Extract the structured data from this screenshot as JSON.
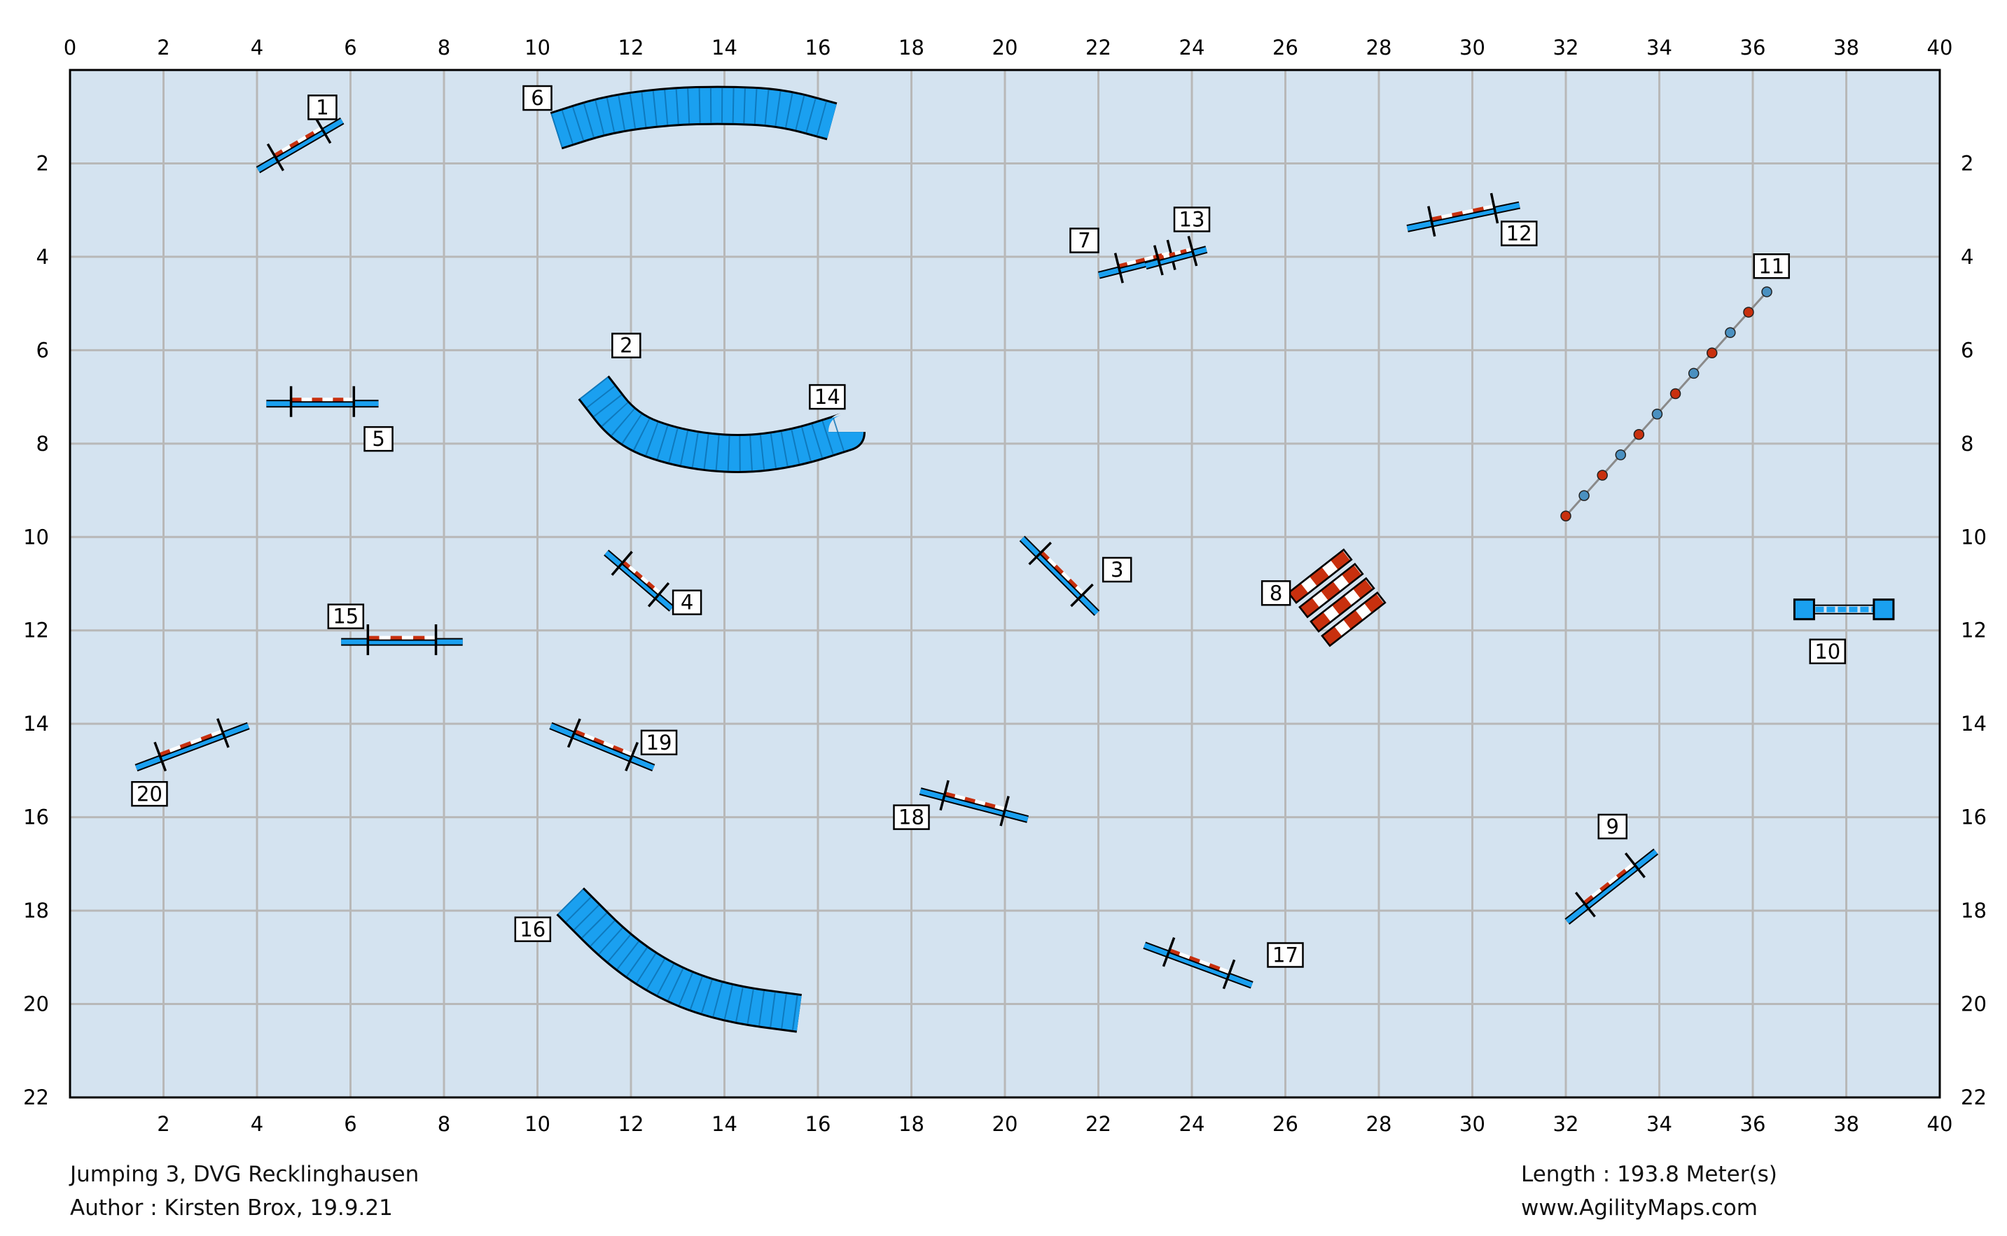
{
  "map": {
    "x_ticks_top": [
      "0",
      "2",
      "4",
      "6",
      "8",
      "10",
      "12",
      "14",
      "16",
      "18",
      "20",
      "22",
      "24",
      "26",
      "28",
      "30",
      "32",
      "34",
      "36",
      "38",
      "40"
    ],
    "x_ticks_bottom": [
      "2",
      "4",
      "6",
      "8",
      "10",
      "12",
      "14",
      "16",
      "18",
      "20",
      "22",
      "24",
      "26",
      "28",
      "30",
      "32",
      "34",
      "36",
      "38",
      "40"
    ],
    "y_ticks": [
      "2",
      "4",
      "6",
      "8",
      "10",
      "12",
      "14",
      "16",
      "18",
      "20",
      "22"
    ],
    "width_m": 40,
    "height_m": 22,
    "colors": {
      "field": "#d4e3f0",
      "grid": "#b8b8b8",
      "blue": "#1aa0f0",
      "red": "#c8300e"
    }
  },
  "obstacles": {
    "jumps": [
      {
        "num": "1",
        "p1": [
          4.0,
          2.1
        ],
        "p2": [
          5.8,
          1.05
        ],
        "label_at": [
          5.4,
          0.8
        ]
      },
      {
        "num": "3",
        "p1": [
          20.4,
          10.0
        ],
        "p2": [
          22.0,
          11.6
        ],
        "label_at": [
          22.4,
          10.7
        ]
      },
      {
        "num": "4",
        "p1": [
          11.5,
          10.3
        ],
        "p2": [
          12.9,
          11.5
        ],
        "label_at": [
          13.2,
          11.4
        ]
      },
      {
        "num": "5",
        "p1": [
          4.2,
          7.1
        ],
        "p2": [
          6.6,
          7.1
        ],
        "label_at": [
          6.6,
          7.9
        ]
      },
      {
        "num": "7",
        "p1": [
          22.0,
          4.35
        ],
        "p2": [
          24.0,
          3.85
        ],
        "label_at": [
          21.7,
          3.65
        ]
      },
      {
        "num": "9",
        "p1": [
          32.0,
          18.2
        ],
        "p2": [
          33.9,
          16.7
        ],
        "label_at": [
          33.0,
          16.2
        ]
      },
      {
        "num": "12",
        "p1": [
          28.6,
          3.35
        ],
        "p2": [
          31.0,
          2.85
        ],
        "label_at": [
          31.0,
          3.5
        ]
      },
      {
        "num": "13",
        "p1": [
          23.0,
          4.15
        ],
        "p2": [
          24.3,
          3.8
        ],
        "label_at": [
          24.0,
          3.2
        ]
      },
      {
        "num": "15",
        "p1": [
          5.8,
          12.2
        ],
        "p2": [
          8.4,
          12.2
        ],
        "label_at": [
          5.9,
          11.7
        ]
      },
      {
        "num": "17",
        "p1": [
          23.0,
          18.7
        ],
        "p2": [
          25.3,
          19.55
        ],
        "label_at": [
          26.0,
          18.95
        ]
      },
      {
        "num": "18",
        "p1": [
          18.2,
          15.4
        ],
        "p2": [
          20.5,
          16.0
        ],
        "label_at": [
          18.0,
          16.0
        ]
      },
      {
        "num": "19",
        "p1": [
          10.3,
          14.0
        ],
        "p2": [
          12.5,
          14.9
        ],
        "label_at": [
          12.6,
          14.4
        ]
      },
      {
        "num": "20",
        "p1": [
          1.4,
          14.9
        ],
        "p2": [
          3.8,
          14.0
        ],
        "label_at": [
          1.7,
          15.5
        ]
      }
    ],
    "tunnels": [
      {
        "num": "6",
        "points": [
          [
            10.4,
            1.3
          ],
          [
            11.5,
            0.95
          ],
          [
            12.8,
            0.78
          ],
          [
            14.0,
            0.75
          ],
          [
            15.2,
            0.8
          ],
          [
            16.3,
            1.1
          ]
        ],
        "label_at": [
          10.0,
          0.6
        ]
      },
      {
        "num": "2",
        "points": [
          [
            11.2,
            6.8
          ],
          [
            11.9,
            7.7
          ],
          [
            13.0,
            8.1
          ],
          [
            14.3,
            8.25
          ],
          [
            15.5,
            8.1
          ],
          [
            16.6,
            7.75
          ]
        ],
        "label_at": [
          11.9,
          5.9
        ]
      },
      {
        "num": "14",
        "points": [],
        "label_at": [
          16.2,
          7.0
        ]
      },
      {
        "num": "16",
        "points": [
          [
            10.7,
            17.8
          ],
          [
            11.8,
            18.9
          ],
          [
            12.9,
            19.6
          ],
          [
            14.1,
            20.0
          ],
          [
            15.6,
            20.2
          ]
        ],
        "label_at": [
          9.9,
          18.4
        ]
      }
    ],
    "weave": {
      "num": "11",
      "start": [
        32.0,
        9.55
      ],
      "end": [
        36.3,
        4.75
      ],
      "poles": 12,
      "label_at": [
        36.4,
        4.2
      ]
    },
    "table": {
      "num": "10",
      "p1": [
        37.1,
        11.55
      ],
      "p2": [
        38.8,
        11.55
      ],
      "label_at": [
        37.6,
        12.45
      ]
    },
    "wall": {
      "num": "8",
      "label_at": [
        25.8,
        11.2
      ]
    }
  },
  "footer": {
    "title_line": "Jumping 3, DVG Recklinghausen",
    "author_line": "Author : Kirsten Brox, 19.9.21",
    "length_line": "Length : 193.8 Meter(s)",
    "website": "www.AgilityMaps.com"
  }
}
